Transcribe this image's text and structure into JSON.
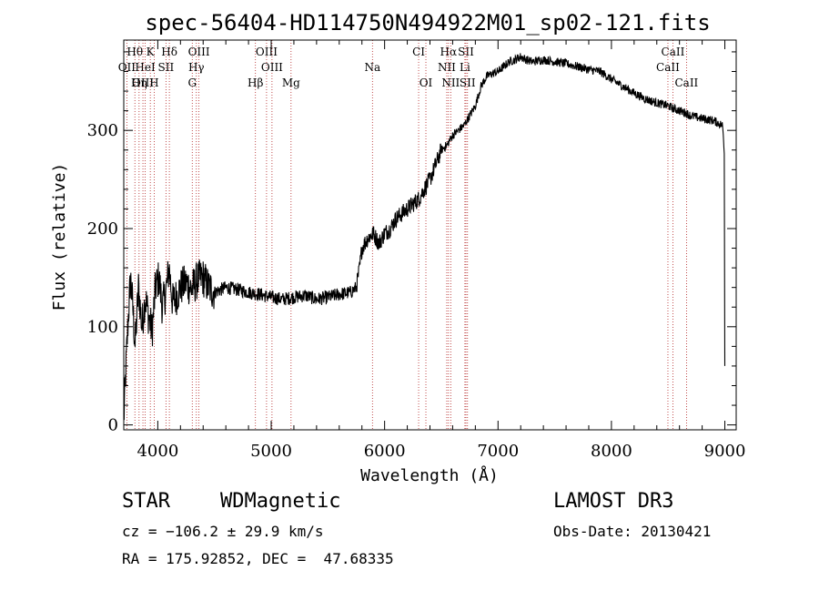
{
  "chart_data": {
    "type": "line",
    "title": "spec-56404-HD114750N494922M01_sp02-121.fits",
    "xlabel": "Wavelength (Å)",
    "ylabel": "Flux (relative)",
    "xlim": [
      3700,
      9100
    ],
    "ylim": [
      -5,
      392
    ],
    "xticks": [
      4000,
      5000,
      6000,
      7000,
      8000,
      9000
    ],
    "yticks": [
      0,
      100,
      200,
      300
    ],
    "xtick_labels": [
      "4000",
      "5000",
      "6000",
      "7000",
      "8000",
      "9000"
    ],
    "ytick_labels": [
      "0",
      "100",
      "200",
      "300"
    ],
    "series": [
      {
        "name": "spectrum",
        "x": [
          3700,
          3720,
          3740,
          3760,
          3780,
          3800,
          3830,
          3860,
          3890,
          3920,
          3950,
          3980,
          4010,
          4040,
          4070,
          4100,
          4130,
          4160,
          4200,
          4250,
          4300,
          4350,
          4400,
          4450,
          4500,
          4600,
          4700,
          4800,
          4900,
          5000,
          5100,
          5200,
          5300,
          5400,
          5500,
          5600,
          5700,
          5750,
          5780,
          5800,
          5850,
          5900,
          5950,
          6000,
          6050,
          6100,
          6150,
          6200,
          6250,
          6300,
          6350,
          6400,
          6450,
          6500,
          6550,
          6600,
          6650,
          6700,
          6750,
          6800,
          6850,
          6900,
          6950,
          7000,
          7050,
          7100,
          7150,
          7200,
          7250,
          7300,
          7400,
          7500,
          7600,
          7700,
          7800,
          7900,
          8000,
          8100,
          8200,
          8300,
          8400,
          8500,
          8550,
          8600,
          8650,
          8700,
          8800,
          8900,
          8980,
          8995,
          9000
        ],
        "y": [
          5,
          60,
          110,
          150,
          120,
          80,
          140,
          100,
          130,
          110,
          95,
          140,
          150,
          120,
          135,
          160,
          125,
          130,
          140,
          145,
          138,
          148,
          150,
          140,
          135,
          140,
          138,
          135,
          133,
          130,
          128,
          130,
          132,
          128,
          130,
          133,
          135,
          140,
          160,
          180,
          190,
          195,
          185,
          195,
          200,
          210,
          215,
          220,
          225,
          230,
          240,
          250,
          265,
          280,
          285,
          295,
          300,
          305,
          315,
          325,
          345,
          355,
          358,
          360,
          365,
          370,
          372,
          375,
          372,
          370,
          372,
          370,
          368,
          365,
          362,
          360,
          352,
          345,
          338,
          332,
          328,
          325,
          322,
          320,
          318,
          315,
          312,
          310,
          305,
          280,
          60
        ]
      }
    ],
    "line_markers": [
      {
        "label": "Hθ",
        "x": 3798,
        "row": 1
      },
      {
        "label": "K",
        "x": 3934,
        "row": 1
      },
      {
        "label": "Hδ",
        "x": 4102,
        "row": 1
      },
      {
        "label": "OIII",
        "x": 4363,
        "row": 1
      },
      {
        "label": "OIII",
        "x": 4959,
        "row": 1
      },
      {
        "label": "CI",
        "x": 6300,
        "row": 1
      },
      {
        "label": "Hα",
        "x": 6563,
        "row": 1
      },
      {
        "label": "SII",
        "x": 6717,
        "row": 1
      },
      {
        "label": "CaII",
        "x": 8542,
        "row": 1
      },
      {
        "label": "OII",
        "x": 3727,
        "row": 2
      },
      {
        "label": "HeI",
        "x": 3889,
        "row": 2
      },
      {
        "label": "SII",
        "x": 4072,
        "row": 2
      },
      {
        "label": "Hγ",
        "x": 4340,
        "row": 2
      },
      {
        "label": "OIII",
        "x": 5007,
        "row": 2
      },
      {
        "label": "Na",
        "x": 5893,
        "row": 2
      },
      {
        "label": "NII",
        "x": 6548,
        "row": 2
      },
      {
        "label": "Li",
        "x": 6708,
        "row": 2
      },
      {
        "label": "CaII",
        "x": 8498,
        "row": 2
      },
      {
        "label": "OIII",
        "x": 3869,
        "row": 3
      },
      {
        "label": "Hη",
        "x": 3835,
        "row": 3
      },
      {
        "label": "H",
        "x": 3968,
        "row": 3
      },
      {
        "label": "G",
        "x": 4304,
        "row": 3
      },
      {
        "label": "Hβ",
        "x": 4861,
        "row": 3
      },
      {
        "label": "Mg",
        "x": 5175,
        "row": 3
      },
      {
        "label": "OI",
        "x": 6364,
        "row": 3
      },
      {
        "label": "NII",
        "x": 6583,
        "row": 3
      },
      {
        "label": "SII",
        "x": 6731,
        "row": 3
      },
      {
        "label": "CaII",
        "x": 8662,
        "row": 3
      }
    ]
  },
  "info": {
    "class": "STAR",
    "subclass": "WDMagnetic",
    "survey": "LAMOST DR3",
    "cz": "cz = −106.2 ± 29.9 km/s",
    "obs_date": "Obs-Date: 20130421",
    "coords": "RA = 175.92852, DEC =  47.68335"
  },
  "colors": {
    "line": "#000000",
    "marker": "#b22222",
    "axis": "#000000"
  }
}
